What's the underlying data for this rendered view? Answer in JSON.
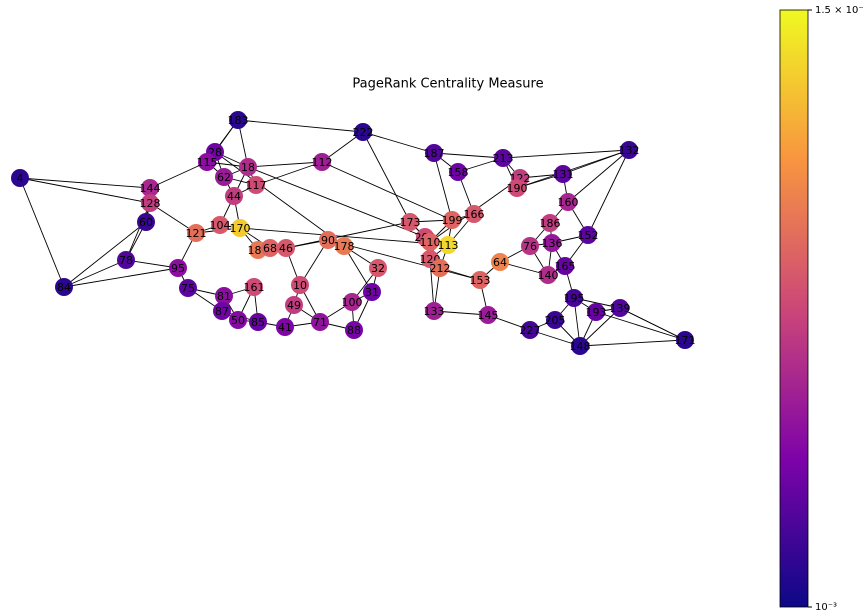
{
  "chart_data": {
    "type": "network",
    "title": "PageRank Centrality Measure",
    "colorbar": {
      "scale": "log",
      "lim": [
        0.001,
        0.015
      ],
      "ticks": [
        {
          "value": 0.015,
          "label": "1.5 × 10⁻²"
        },
        {
          "value": 0.001,
          "label": "10⁻³"
        }
      ],
      "colormap": [
        "#0d0887",
        "#7e03a8",
        "#cc4778",
        "#f89540",
        "#f0f921"
      ]
    },
    "nodes": [
      {
        "label": "4",
        "value": 0.0012
      },
      {
        "label": "84",
        "value": 0.0012
      },
      {
        "label": "78",
        "value": 0.0015
      },
      {
        "label": "95",
        "value": 0.0022
      },
      {
        "label": "75",
        "value": 0.0016
      },
      {
        "label": "60",
        "value": 0.0013
      },
      {
        "label": "144",
        "value": 0.0028
      },
      {
        "label": "128",
        "value": 0.0035
      },
      {
        "label": "183",
        "value": 0.0012
      },
      {
        "label": "222",
        "value": 0.0012
      },
      {
        "label": "28",
        "value": 0.0018
      },
      {
        "label": "115",
        "value": 0.0022
      },
      {
        "label": "18",
        "value": 0.003
      },
      {
        "label": "62",
        "value": 0.0025
      },
      {
        "label": "117",
        "value": 0.004
      },
      {
        "label": "112",
        "value": 0.0026
      },
      {
        "label": "187",
        "value": 0.0015
      },
      {
        "label": "158",
        "value": 0.0018
      },
      {
        "label": "213",
        "value": 0.0016
      },
      {
        "label": "131",
        "value": 0.0016
      },
      {
        "label": "132",
        "value": 0.0013
      },
      {
        "label": "122",
        "value": 0.0035
      },
      {
        "label": "190",
        "value": 0.004
      },
      {
        "label": "160",
        "value": 0.0028
      },
      {
        "label": "152",
        "value": 0.0016
      },
      {
        "label": "165",
        "value": 0.0017
      },
      {
        "label": "195",
        "value": 0.0014
      },
      {
        "label": "193",
        "value": 0.0017
      },
      {
        "label": "139",
        "value": 0.0015
      },
      {
        "label": "171",
        "value": 0.0012
      },
      {
        "label": "205",
        "value": 0.0013
      },
      {
        "label": "227",
        "value": 0.0014
      },
      {
        "label": "148",
        "value": 0.0012
      },
      {
        "label": "140",
        "value": 0.003
      },
      {
        "label": "136",
        "value": 0.0024
      },
      {
        "label": "81",
        "value": 0.0022
      },
      {
        "label": "87",
        "value": 0.0018
      },
      {
        "label": "50",
        "value": 0.0021
      },
      {
        "label": "85",
        "value": 0.0017
      },
      {
        "label": "41",
        "value": 0.002
      },
      {
        "label": "71",
        "value": 0.0023
      },
      {
        "label": "100",
        "value": 0.0028
      },
      {
        "label": "88",
        "value": 0.0019
      },
      {
        "label": "31",
        "value": 0.0018
      },
      {
        "label": "133",
        "value": 0.0026
      },
      {
        "label": "145",
        "value": 0.0025
      },
      {
        "label": "120",
        "value": 0.0045
      },
      {
        "label": "199",
        "value": 0.005
      },
      {
        "label": "166",
        "value": 0.0045
      },
      {
        "label": "209",
        "value": 0.004
      },
      {
        "label": "186",
        "value": 0.0035
      },
      {
        "label": "76",
        "value": 0.0032
      },
      {
        "label": "121",
        "value": 0.0055
      },
      {
        "label": "104",
        "value": 0.0045
      },
      {
        "label": "170",
        "value": 0.011
      },
      {
        "label": "188",
        "value": 0.006
      },
      {
        "label": "68",
        "value": 0.005
      },
      {
        "label": "46",
        "value": 0.0045
      },
      {
        "label": "90",
        "value": 0.0055
      },
      {
        "label": "178",
        "value": 0.006
      },
      {
        "label": "10",
        "value": 0.004
      },
      {
        "label": "153",
        "value": 0.005
      },
      {
        "label": "64",
        "value": 0.0065
      },
      {
        "label": "110",
        "value": 0.005
      },
      {
        "label": "113",
        "value": 0.012
      },
      {
        "label": "212",
        "value": 0.0055
      },
      {
        "label": "173",
        "value": 0.0045
      },
      {
        "label": "32",
        "value": 0.0045
      },
      {
        "label": "161",
        "value": 0.004
      },
      {
        "label": "49",
        "value": 0.0035
      },
      {
        "label": "44",
        "value": 0.0035
      }
    ]
  }
}
